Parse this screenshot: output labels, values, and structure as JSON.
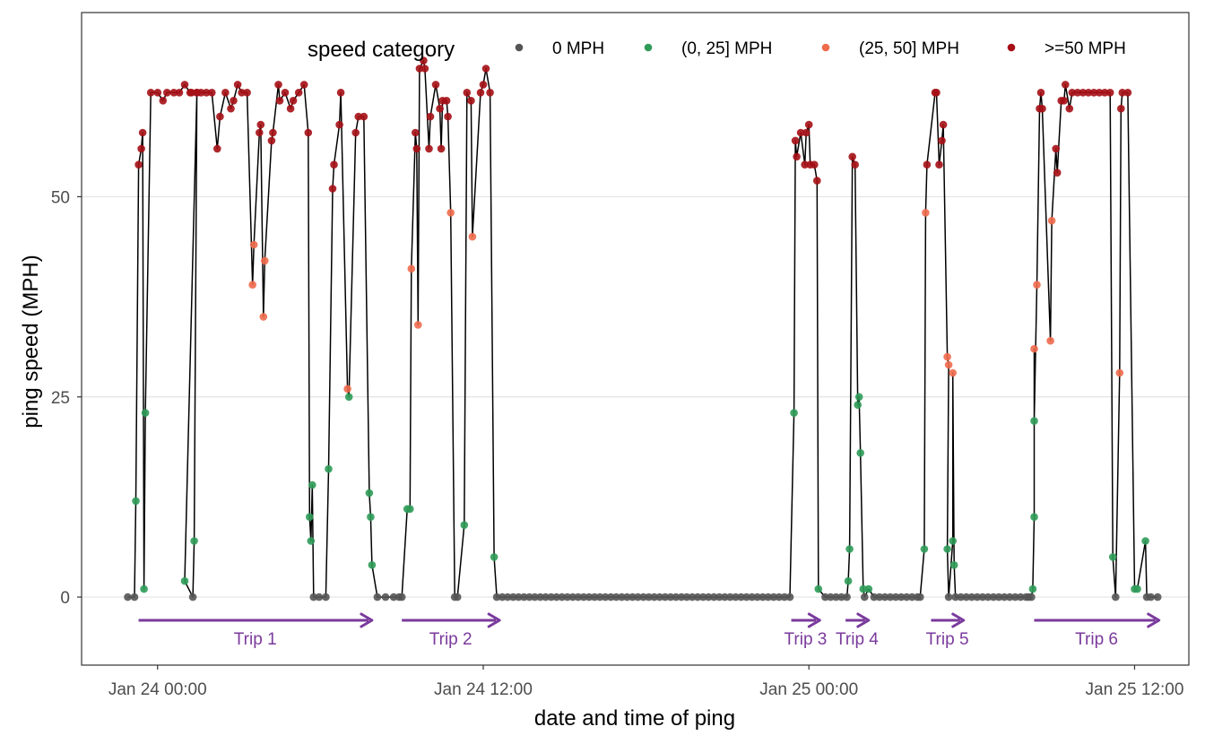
{
  "chart_data": {
    "type": "scatter",
    "title": "",
    "xlabel": "date and time of ping",
    "ylabel": "ping speed (MPH)",
    "x_unit": "hours",
    "x_origin": "Jan 24 00:00",
    "xlim": [
      -2.8,
      38.0
    ],
    "ylim": [
      -8.5,
      73.0
    ],
    "x_ticks": [
      {
        "at": 0,
        "label": "Jan 24 00:00"
      },
      {
        "at": 12,
        "label": "Jan 24 12:00"
      },
      {
        "at": 24,
        "label": "Jan 25 00:00"
      },
      {
        "at": 36,
        "label": "Jan 25 12:00"
      }
    ],
    "y_ticks": [
      {
        "at": 0,
        "label": "0"
      },
      {
        "at": 25,
        "label": "25"
      },
      {
        "at": 50,
        "label": "50"
      }
    ],
    "grid": true,
    "connect_points": true,
    "legend": {
      "title": "speed category",
      "position": "top",
      "entries": [
        {
          "label": "0 MPH",
          "color": "#555555"
        },
        {
          "label": "(0, 25] MPH",
          "color": "#2e9b58"
        },
        {
          "label": "(25, 50] MPH",
          "color": "#ef6a4b"
        },
        {
          "label": ">=50 MPH",
          "color": "#a50f15"
        }
      ]
    },
    "colors": {
      "line": "#000000",
      "trip_arrow": "#7a3a9c",
      "grid": "#e3e3e3",
      "panel_border": "#333333"
    },
    "points": [
      [
        -1.1,
        0
      ],
      [
        -0.85,
        0
      ],
      [
        -0.8,
        12
      ],
      [
        -0.7,
        54
      ],
      [
        -0.6,
        56
      ],
      [
        -0.55,
        58
      ],
      [
        -0.5,
        1
      ],
      [
        -0.45,
        23
      ],
      [
        -0.25,
        63
      ],
      [
        0.0,
        63
      ],
      [
        0.2,
        62
      ],
      [
        0.35,
        63
      ],
      [
        0.6,
        63
      ],
      [
        0.8,
        63
      ],
      [
        1.0,
        64
      ],
      [
        1.2,
        63
      ],
      [
        1.25,
        63
      ],
      [
        1.45,
        63
      ],
      [
        1.0,
        2
      ],
      [
        1.3,
        0
      ],
      [
        1.35,
        7
      ],
      [
        1.45,
        63
      ],
      [
        1.6,
        63
      ],
      [
        1.8,
        63
      ],
      [
        2.0,
        63
      ],
      [
        2.2,
        56
      ],
      [
        2.3,
        60
      ],
      [
        2.5,
        63
      ],
      [
        2.7,
        61
      ],
      [
        2.8,
        62
      ],
      [
        2.95,
        64
      ],
      [
        3.1,
        63
      ],
      [
        3.3,
        63
      ],
      [
        3.5,
        39
      ],
      [
        3.55,
        44
      ],
      [
        3.75,
        58
      ],
      [
        3.8,
        59
      ],
      [
        3.9,
        35
      ],
      [
        3.95,
        42
      ],
      [
        4.2,
        57
      ],
      [
        4.25,
        58
      ],
      [
        4.45,
        64
      ],
      [
        4.5,
        62
      ],
      [
        4.7,
        63
      ],
      [
        4.9,
        61
      ],
      [
        5.0,
        62
      ],
      [
        5.2,
        63
      ],
      [
        5.4,
        64
      ],
      [
        5.55,
        58
      ],
      [
        5.6,
        10
      ],
      [
        5.65,
        7
      ],
      [
        5.7,
        14
      ],
      [
        5.75,
        0
      ],
      [
        5.95,
        0
      ],
      [
        6.2,
        0
      ],
      [
        6.3,
        16
      ],
      [
        6.45,
        51
      ],
      [
        6.5,
        54
      ],
      [
        6.7,
        59
      ],
      [
        6.75,
        63
      ],
      [
        7.0,
        26
      ],
      [
        7.05,
        25
      ],
      [
        7.3,
        58
      ],
      [
        7.4,
        60
      ],
      [
        7.6,
        60
      ],
      [
        7.8,
        13
      ],
      [
        7.85,
        10
      ],
      [
        7.9,
        4
      ],
      [
        8.1,
        0
      ],
      [
        8.4,
        0
      ],
      [
        8.7,
        0
      ],
      [
        8.9,
        0
      ],
      [
        9.0,
        0
      ],
      [
        9.2,
        11
      ],
      [
        9.3,
        11
      ],
      [
        9.35,
        41
      ],
      [
        9.5,
        58
      ],
      [
        9.55,
        56
      ],
      [
        9.6,
        34
      ],
      [
        9.65,
        66
      ],
      [
        9.8,
        67
      ],
      [
        9.85,
        66
      ],
      [
        10.0,
        56
      ],
      [
        10.05,
        60
      ],
      [
        10.25,
        64
      ],
      [
        10.4,
        61
      ],
      [
        10.45,
        56
      ],
      [
        10.5,
        62
      ],
      [
        10.65,
        62
      ],
      [
        10.7,
        60
      ],
      [
        10.8,
        48
      ],
      [
        10.95,
        0
      ],
      [
        11.05,
        0
      ],
      [
        11.3,
        9
      ],
      [
        11.4,
        63
      ],
      [
        11.55,
        62
      ],
      [
        11.6,
        45
      ],
      [
        11.9,
        63
      ],
      [
        12.0,
        64
      ],
      [
        12.1,
        66
      ],
      [
        12.25,
        63
      ],
      [
        12.4,
        5
      ],
      [
        12.5,
        0
      ],
      [
        12.7,
        0
      ],
      [
        12.9,
        0
      ],
      [
        13.1,
        0
      ],
      [
        13.3,
        0
      ],
      [
        13.5,
        0
      ],
      [
        13.7,
        0
      ],
      [
        13.9,
        0
      ],
      [
        14.1,
        0
      ],
      [
        14.3,
        0
      ],
      [
        14.5,
        0
      ],
      [
        14.7,
        0
      ],
      [
        14.9,
        0
      ],
      [
        15.1,
        0
      ],
      [
        15.3,
        0
      ],
      [
        15.5,
        0
      ],
      [
        15.7,
        0
      ],
      [
        15.9,
        0
      ],
      [
        16.1,
        0
      ],
      [
        16.3,
        0
      ],
      [
        16.5,
        0
      ],
      [
        16.7,
        0
      ],
      [
        16.9,
        0
      ],
      [
        17.1,
        0
      ],
      [
        17.3,
        0
      ],
      [
        17.5,
        0
      ],
      [
        17.7,
        0
      ],
      [
        17.9,
        0
      ],
      [
        18.1,
        0
      ],
      [
        18.3,
        0
      ],
      [
        18.5,
        0
      ],
      [
        18.7,
        0
      ],
      [
        18.9,
        0
      ],
      [
        19.1,
        0
      ],
      [
        19.3,
        0
      ],
      [
        19.5,
        0
      ],
      [
        19.7,
        0
      ],
      [
        19.9,
        0
      ],
      [
        20.1,
        0
      ],
      [
        20.3,
        0
      ],
      [
        20.5,
        0
      ],
      [
        20.7,
        0
      ],
      [
        20.9,
        0
      ],
      [
        21.1,
        0
      ],
      [
        21.3,
        0
      ],
      [
        21.5,
        0
      ],
      [
        21.7,
        0
      ],
      [
        21.9,
        0
      ],
      [
        22.1,
        0
      ],
      [
        22.3,
        0
      ],
      [
        22.5,
        0
      ],
      [
        22.7,
        0
      ],
      [
        22.9,
        0
      ],
      [
        23.1,
        0
      ],
      [
        23.3,
        0
      ],
      [
        23.45,
        23
      ],
      [
        23.5,
        57
      ],
      [
        23.55,
        55
      ],
      [
        23.7,
        58
      ],
      [
        23.85,
        54
      ],
      [
        23.9,
        58
      ],
      [
        24.0,
        59
      ],
      [
        24.05,
        54
      ],
      [
        24.2,
        54
      ],
      [
        24.3,
        52
      ],
      [
        24.35,
        1
      ],
      [
        24.6,
        0
      ],
      [
        24.8,
        0
      ],
      [
        25.0,
        0
      ],
      [
        25.2,
        0
      ],
      [
        25.4,
        0
      ],
      [
        25.45,
        2
      ],
      [
        25.5,
        6
      ],
      [
        25.6,
        55
      ],
      [
        25.7,
        54
      ],
      [
        25.8,
        24
      ],
      [
        25.85,
        25
      ],
      [
        25.9,
        18
      ],
      [
        26.0,
        1
      ],
      [
        26.05,
        0
      ],
      [
        26.2,
        1
      ],
      [
        26.4,
        0
      ],
      [
        26.6,
        0
      ],
      [
        26.8,
        0
      ],
      [
        27.0,
        0
      ],
      [
        27.2,
        0
      ],
      [
        27.4,
        0
      ],
      [
        27.6,
        0
      ],
      [
        27.8,
        0
      ],
      [
        28.0,
        0
      ],
      [
        28.1,
        0
      ],
      [
        28.25,
        6
      ],
      [
        28.3,
        48
      ],
      [
        28.35,
        54
      ],
      [
        28.65,
        63
      ],
      [
        28.7,
        63
      ],
      [
        28.8,
        54
      ],
      [
        28.9,
        57
      ],
      [
        28.95,
        59
      ],
      [
        29.1,
        30
      ],
      [
        29.15,
        29
      ],
      [
        29.1,
        6
      ],
      [
        29.15,
        0
      ],
      [
        29.3,
        7
      ],
      [
        29.3,
        28
      ],
      [
        29.35,
        4
      ],
      [
        29.4,
        0
      ],
      [
        29.6,
        0
      ],
      [
        29.8,
        0
      ],
      [
        30.0,
        0
      ],
      [
        30.2,
        0
      ],
      [
        30.4,
        0
      ],
      [
        30.6,
        0
      ],
      [
        30.8,
        0
      ],
      [
        31.0,
        0
      ],
      [
        31.2,
        0
      ],
      [
        31.4,
        0
      ],
      [
        31.6,
        0
      ],
      [
        31.8,
        0
      ],
      [
        32.0,
        0
      ],
      [
        32.1,
        0
      ],
      [
        32.2,
        0
      ],
      [
        32.25,
        1
      ],
      [
        32.3,
        10
      ],
      [
        32.3,
        31
      ],
      [
        32.3,
        22
      ],
      [
        32.4,
        39
      ],
      [
        32.5,
        61
      ],
      [
        32.55,
        63
      ],
      [
        32.6,
        61
      ],
      [
        32.9,
        32
      ],
      [
        32.95,
        47
      ],
      [
        33.1,
        56
      ],
      [
        33.15,
        53
      ],
      [
        33.3,
        62
      ],
      [
        33.4,
        62
      ],
      [
        33.45,
        64
      ],
      [
        33.6,
        61
      ],
      [
        33.7,
        63
      ],
      [
        33.9,
        63
      ],
      [
        34.1,
        63
      ],
      [
        34.3,
        63
      ],
      [
        34.5,
        63
      ],
      [
        34.7,
        63
      ],
      [
        34.9,
        63
      ],
      [
        35.1,
        63
      ],
      [
        35.2,
        5
      ],
      [
        35.3,
        0
      ],
      [
        35.45,
        28
      ],
      [
        35.5,
        61
      ],
      [
        35.55,
        63
      ],
      [
        35.75,
        63
      ],
      [
        36.0,
        1
      ],
      [
        36.1,
        1
      ],
      [
        36.4,
        7
      ],
      [
        36.45,
        0
      ],
      [
        36.6,
        0
      ],
      [
        36.85,
        0
      ]
    ],
    "trips": [
      {
        "label": "Trip 1",
        "start": -0.7,
        "end": 7.9
      },
      {
        "label": "Trip 2",
        "start": 9.0,
        "end": 12.6
      },
      {
        "label": "Trip 3",
        "start": 23.35,
        "end": 24.4
      },
      {
        "label": "Trip 4",
        "start": 25.35,
        "end": 26.2
      },
      {
        "label": "Trip 5",
        "start": 28.5,
        "end": 29.7
      },
      {
        "label": "Trip 6",
        "start": 32.3,
        "end": 36.9
      }
    ]
  }
}
